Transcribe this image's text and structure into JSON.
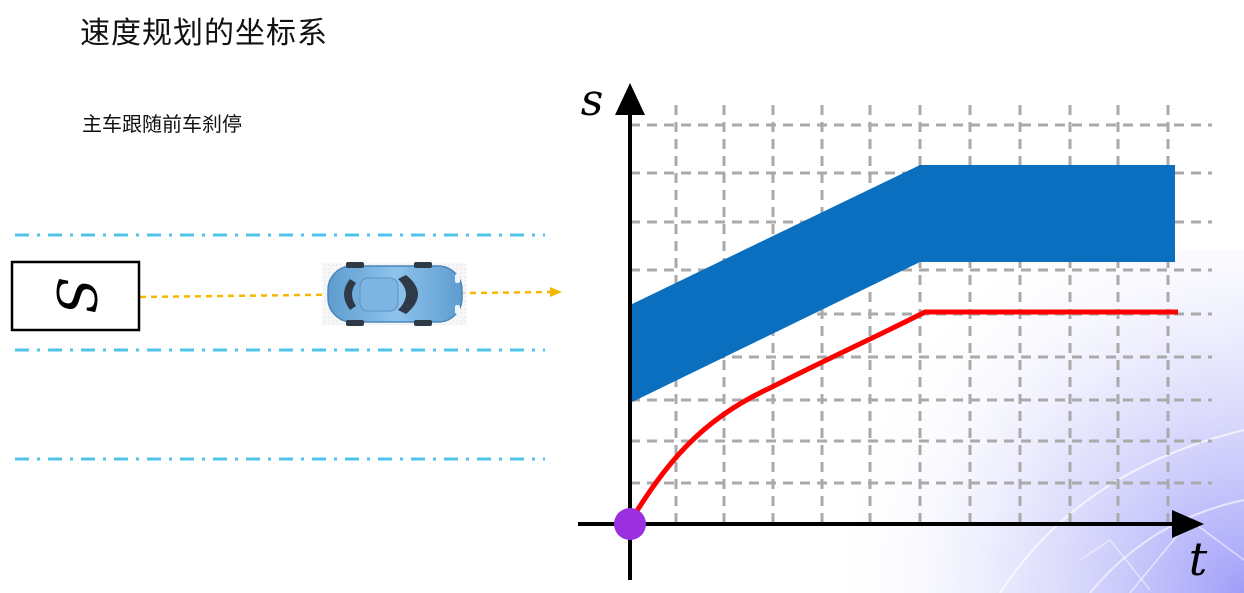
{
  "page": {
    "title": "速度规划的坐标系",
    "subtitle": "主车跟随前车刹停"
  },
  "road_scene": {
    "obstacle_box_label": "S",
    "ego_vehicle": "car-icon",
    "lane_line_color": "#4FC3E8",
    "trajectory_color": "#F5B800"
  },
  "st_graph": {
    "x_axis_label": "t",
    "y_axis_label": "s",
    "obstacle_region_color": "#0A6FBF",
    "speed_profile_color": "#FF0000",
    "start_point_color": "#9B30E0",
    "grid_color": "#AAAAAA"
  }
}
